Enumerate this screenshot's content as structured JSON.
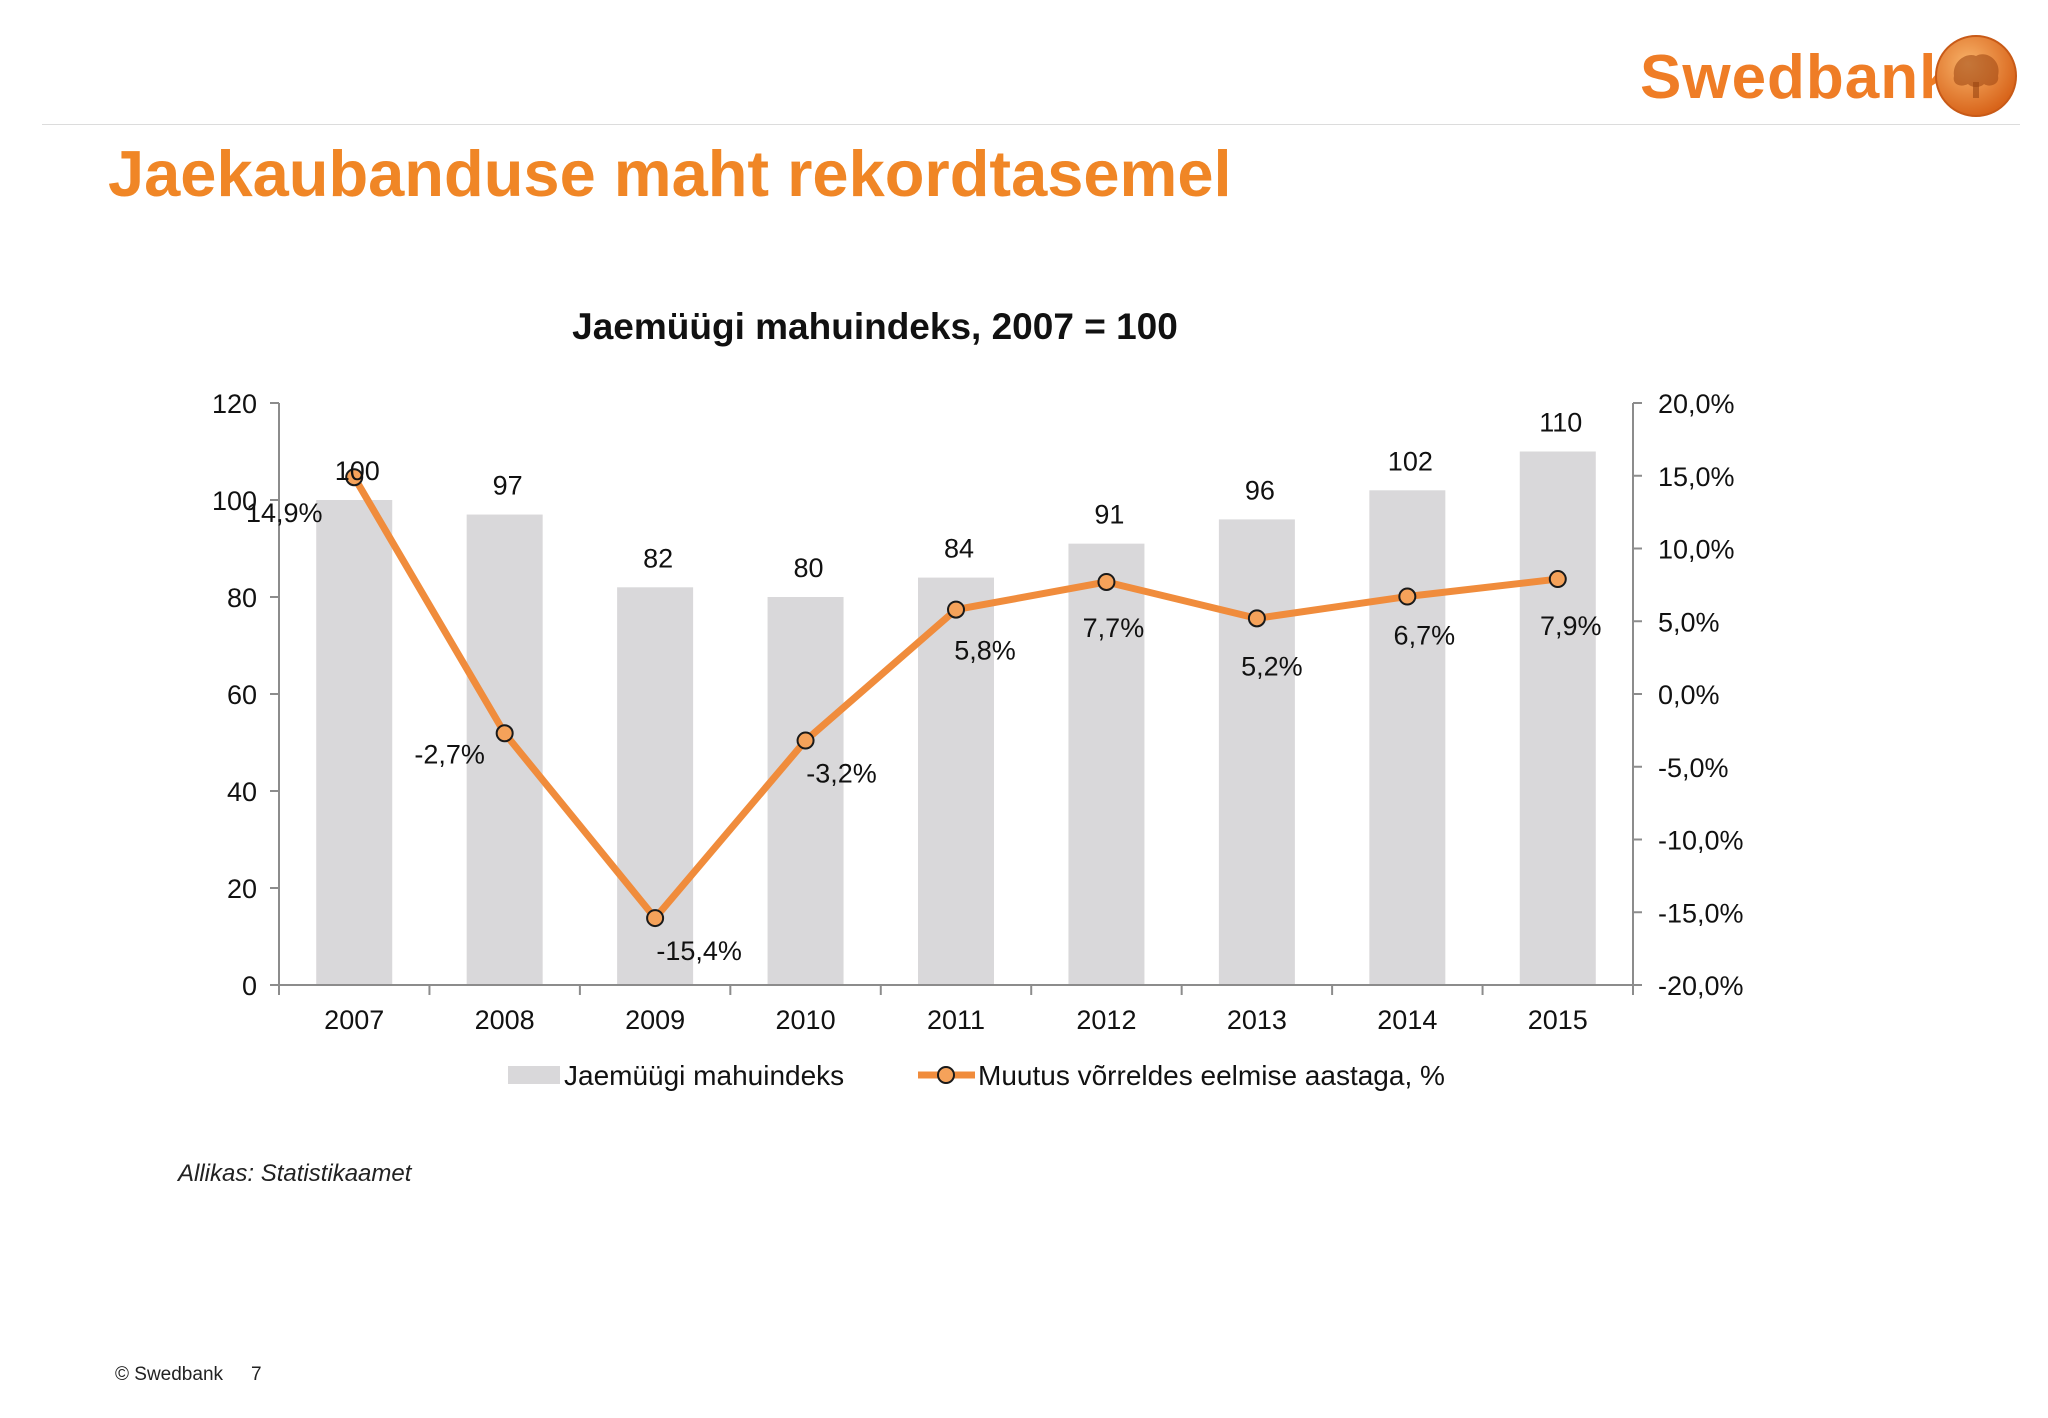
{
  "header": {
    "brand": "Swedbank",
    "title": "Jaekaubanduse maht rekordtasemel"
  },
  "colors": {
    "brand_orange": "#ef7d26",
    "bar": "#d9d8da",
    "line": "#f08c3c",
    "marker_fill": "#f5a25a"
  },
  "chart_data": {
    "type": "bar",
    "title": "Jaemüügi mahuindeks, 2007 = 100",
    "categories": [
      "2007",
      "2008",
      "2009",
      "2010",
      "2011",
      "2012",
      "2013",
      "2014",
      "2015"
    ],
    "series": [
      {
        "name": "Jaemüügi mahuindeks",
        "type": "bar",
        "axis": "left",
        "values": [
          100,
          97,
          82,
          80,
          84,
          91,
          96,
          102,
          110
        ],
        "labels": [
          "100",
          "97",
          "82",
          "80",
          "84",
          "91",
          "96",
          "102",
          "110"
        ]
      },
      {
        "name": "Muutus võrreldes eelmise aastaga, %",
        "type": "line",
        "axis": "right",
        "values": [
          14.9,
          -2.7,
          -15.4,
          -3.2,
          5.8,
          7.7,
          5.2,
          6.7,
          7.9
        ],
        "labels": [
          "14,9%",
          "-2,7%",
          "-15,4%",
          "-3,2%",
          "5,8%",
          "7,7%",
          "5,2%",
          "6,7%",
          "7,9%"
        ]
      }
    ],
    "left_axis": {
      "ylim": [
        0,
        120
      ],
      "ticks": [
        "0",
        "20",
        "40",
        "60",
        "80",
        "100",
        "120"
      ]
    },
    "right_axis": {
      "ylim": [
        -20,
        20
      ],
      "ticks": [
        "-20,0%",
        "-15,0%",
        "-10,0%",
        "-5,0%",
        "0,0%",
        "5,0%",
        "10,0%",
        "15,0%",
        "20,0%"
      ]
    },
    "grid": false,
    "legend": "bottom"
  },
  "source": "Allikas: Statistikaamet",
  "footer": {
    "copyright": "© Swedbank",
    "page": "7"
  }
}
